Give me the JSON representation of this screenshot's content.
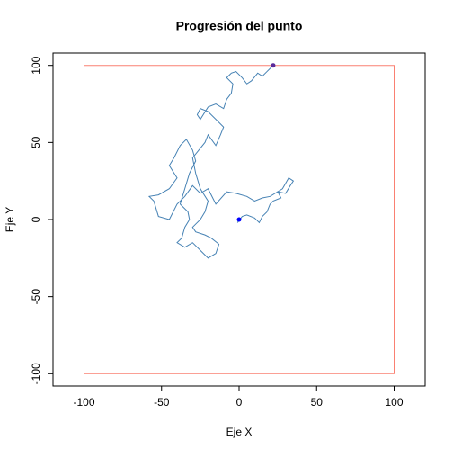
{
  "chart_data": {
    "type": "line",
    "title": "Progresión del punto",
    "xlabel": "Eje X",
    "ylabel": "Eje Y",
    "xlim": [
      -120,
      120
    ],
    "ylim": [
      -108,
      108
    ],
    "xticks": [
      -100,
      -50,
      0,
      50,
      100
    ],
    "yticks": [
      -100,
      -50,
      0,
      50,
      100
    ],
    "series": [
      {
        "color": "#4682b4",
        "x": [
          0,
          -1,
          2,
          5,
          10,
          13,
          15,
          18,
          20,
          22,
          27,
          25,
          30,
          33,
          35,
          32,
          28,
          20,
          15,
          10,
          5,
          -2,
          -8,
          -15,
          -17,
          -20,
          -25,
          -30,
          -35,
          -40,
          -45,
          -52,
          -55,
          -58,
          -52,
          -45,
          -40,
          -45,
          -42,
          -38,
          -34,
          -30,
          -28,
          -32,
          -35,
          -38,
          -33,
          -32,
          -35,
          -37,
          -40,
          -35,
          -30,
          -25,
          -20,
          -15,
          -13,
          -18,
          -22,
          -28,
          -30,
          -25,
          -22,
          -20,
          -25,
          -28,
          -30,
          -26,
          -22,
          -20,
          -15,
          -12,
          -10,
          -15,
          -20,
          -25,
          -27,
          -25,
          -20,
          -15,
          -10,
          -8,
          -5,
          -4,
          -8,
          -5,
          -2,
          2,
          5,
          8,
          12,
          15,
          18,
          20,
          22
        ],
        "y": [
          0,
          -2,
          2,
          3,
          1,
          -2,
          2,
          5,
          10,
          12,
          14,
          18,
          17,
          22,
          25,
          27,
          20,
          15,
          14,
          12,
          15,
          17,
          18,
          10,
          14,
          20,
          17,
          22,
          15,
          10,
          0,
          2,
          12,
          15,
          16,
          20,
          27,
          35,
          40,
          48,
          52,
          45,
          38,
          30,
          20,
          10,
          5,
          0,
          -5,
          -12,
          -15,
          -18,
          -15,
          -20,
          -25,
          -22,
          -16,
          -12,
          -10,
          -8,
          -5,
          0,
          5,
          12,
          20,
          30,
          40,
          45,
          50,
          55,
          48,
          55,
          60,
          65,
          70,
          72,
          68,
          65,
          73,
          75,
          72,
          78,
          82,
          88,
          92,
          95,
          96,
          92,
          88,
          90,
          95,
          93,
          96,
          98,
          100
        ]
      },
      {
        "color": "#fa8072",
        "x": [
          -100,
          100,
          100,
          -100,
          -100
        ],
        "y": [
          -100,
          -100,
          100,
          100,
          -100
        ]
      }
    ],
    "points": [
      {
        "x": 0,
        "y": 0,
        "color": "#0000ff"
      },
      {
        "x": 22,
        "y": 100,
        "color": "#5a2a9a"
      }
    ]
  }
}
